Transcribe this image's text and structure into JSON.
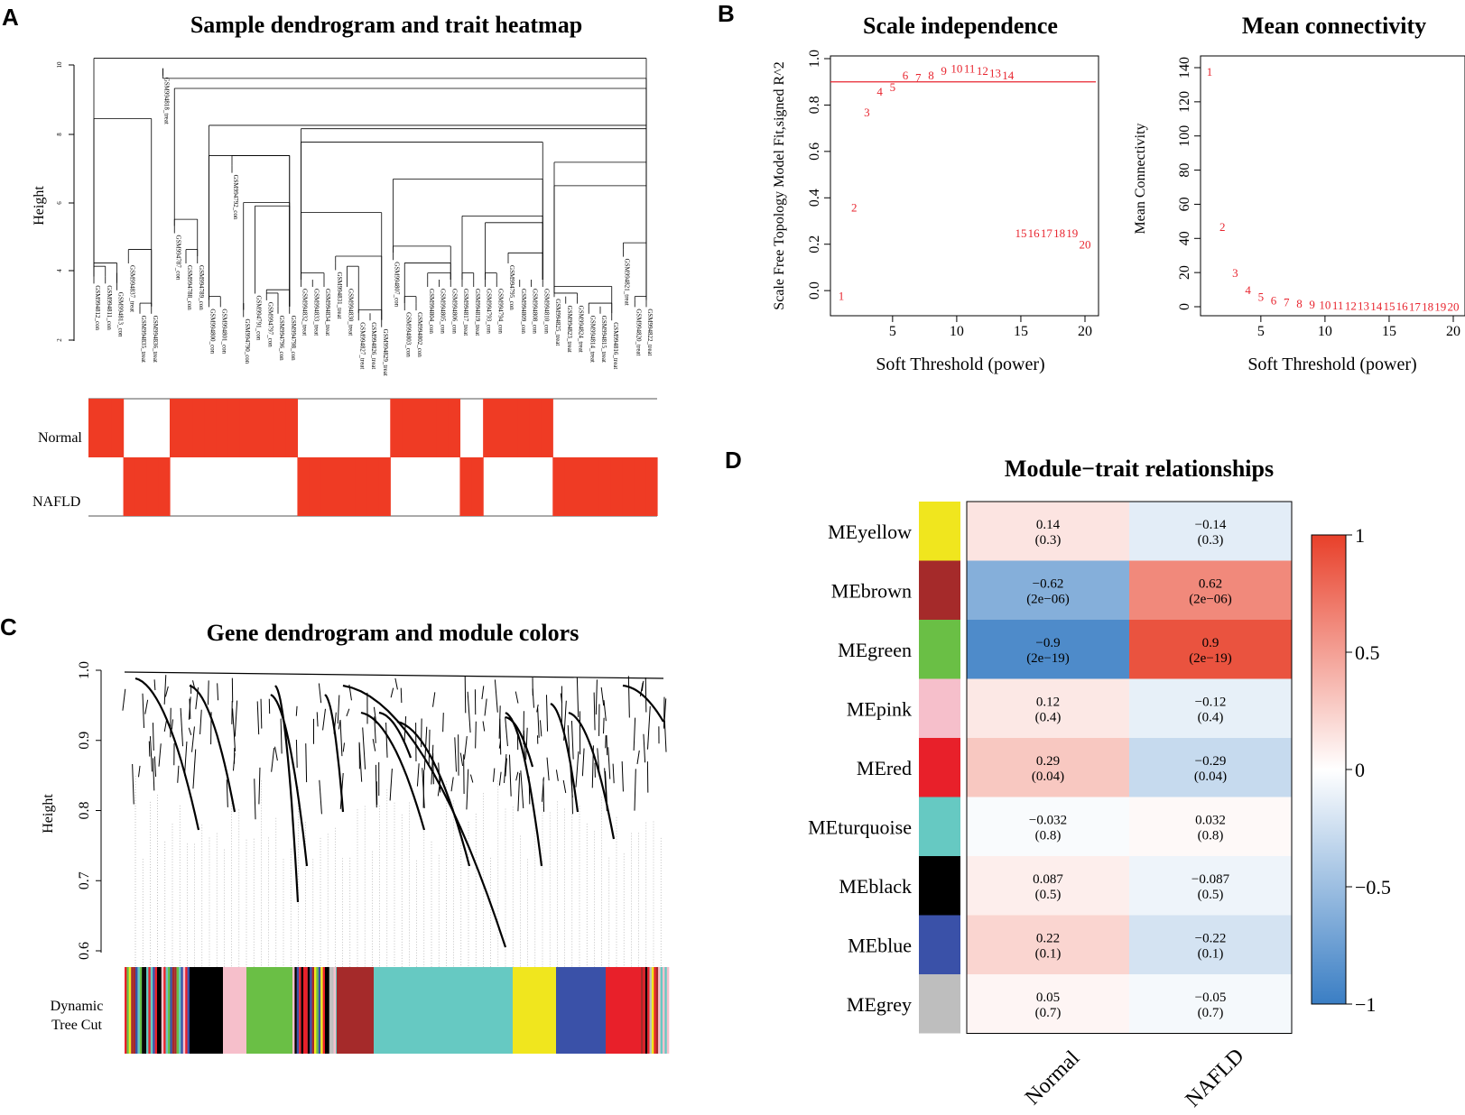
{
  "panels": {
    "a": "A",
    "b": "B",
    "c": "C",
    "d": "D"
  },
  "panel_a": {
    "title": "Sample dendrogram and trait heatmap",
    "ylabel": "Height",
    "yticks": [
      "2",
      "4",
      "6",
      "8",
      "10"
    ],
    "samples": [
      "GSM994812_con",
      "GSM994811_con",
      "GSM994813_con",
      "GSM994837_treat",
      "GSM994835_treat",
      "GSM994836_treat",
      "GSM994818_treat",
      "GSM994787_con",
      "GSM994788_con",
      "GSM994789_con",
      "GSM994800_con",
      "GSM994801_con",
      "GSM994792_con",
      "GSM994790_con",
      "GSM994791_con",
      "GSM994797_con",
      "GSM994796_con",
      "GSM994798_con",
      "GSM994832_treat",
      "GSM994833_treat",
      "GSM994834_treat",
      "GSM994831_treat",
      "GSM994830_treat",
      "GSM994827_treat",
      "GSM994826_treat",
      "GSM994829_treat",
      "GSM994807_con",
      "GSM994803_con",
      "GSM994802_con",
      "GSM994804_con",
      "GSM994805_con",
      "GSM994806_con",
      "GSM994817_treat",
      "GSM994819_treat",
      "GSM994793_con",
      "GSM994794_con",
      "GSM994795_con",
      "GSM994809_con",
      "GSM994808_con",
      "GSM994810_con",
      "GSM994825_treat",
      "GSM994823_treat",
      "GSM994824_treat",
      "GSM994814_treat",
      "GSM994815_treat",
      "GSM994816_treat",
      "GSM994821_treat",
      "GSM994820_treat",
      "GSM994822_treat"
    ],
    "traits": [
      "Normal",
      "NAFLD"
    ]
  },
  "chart_data": [
    {
      "type": "scatter",
      "title": "Scale independence",
      "xlabel": "Soft Threshold (power)",
      "ylabel": "Scale Free Topology Model Fit,signed R^2",
      "xlim": [
        1,
        20
      ],
      "ylim": [
        -0.05,
        1.0
      ],
      "xticks": [
        "5",
        "10",
        "15",
        "20"
      ],
      "yticks": [
        "0.0",
        "0.2",
        "0.4",
        "0.6",
        "0.8",
        "1.0"
      ],
      "threshold_line": 0.9,
      "x": [
        1,
        2,
        3,
        4,
        5,
        6,
        7,
        8,
        9,
        10,
        11,
        12,
        13,
        14,
        15,
        16,
        17,
        18,
        19,
        20
      ],
      "y": [
        -0.02,
        0.36,
        0.77,
        0.86,
        0.88,
        0.93,
        0.92,
        0.93,
        0.95,
        0.96,
        0.96,
        0.95,
        0.94,
        0.93,
        0.25,
        0.25,
        0.25,
        0.25,
        0.25,
        0.2
      ],
      "labels": [
        "1",
        "2",
        "3",
        "4",
        "5",
        "6",
        "7",
        "8",
        "9",
        "10",
        "11",
        "12",
        "13",
        "14",
        "15",
        "16",
        "17",
        "18",
        "19",
        "20"
      ]
    },
    {
      "type": "scatter",
      "title": "Mean connectivity",
      "xlabel": "Soft Threshold (power)",
      "ylabel": "Mean Connectivity",
      "xlim": [
        1,
        20
      ],
      "ylim": [
        0,
        140
      ],
      "xticks": [
        "5",
        "10",
        "15",
        "20"
      ],
      "yticks": [
        "0",
        "20",
        "40",
        "60",
        "80",
        "100",
        "120",
        "140"
      ],
      "x": [
        1,
        2,
        3,
        4,
        5,
        6,
        7,
        8,
        9,
        10,
        11,
        12,
        13,
        14,
        15,
        16,
        17,
        18,
        19,
        20
      ],
      "y": [
        138,
        47,
        20,
        10,
        6,
        4,
        3,
        2,
        1.6,
        1.2,
        1,
        0.8,
        0.7,
        0.6,
        0.5,
        0.4,
        0.35,
        0.3,
        0.25,
        0.2
      ],
      "labels": [
        "1",
        "2",
        "3",
        "4",
        "5",
        "6",
        "7",
        "8",
        "9",
        "10",
        "11",
        "12",
        "13",
        "14",
        "15",
        "16",
        "17",
        "18",
        "19",
        "20"
      ]
    },
    {
      "type": "heatmap",
      "title": "Module−trait relationships",
      "columns": [
        "Normal",
        "NAFLD"
      ],
      "rows": [
        {
          "module": "MEyellow",
          "color": "#f0e61e",
          "values": [
            0.14,
            -0.14
          ],
          "text": [
            "0.14",
            "−0.14"
          ],
          "p": [
            "(0.3)",
            "(0.3)"
          ]
        },
        {
          "module": "MEbrown",
          "color": "#a52a2a",
          "values": [
            -0.62,
            0.62
          ],
          "text": [
            "−0.62",
            "0.62"
          ],
          "p": [
            "(2e−06)",
            "(2e−06)"
          ]
        },
        {
          "module": "MEgreen",
          "color": "#6abf45",
          "values": [
            -0.9,
            0.9
          ],
          "text": [
            "−0.9",
            "0.9"
          ],
          "p": [
            "(2e−19)",
            "(2e−19)"
          ]
        },
        {
          "module": "MEpink",
          "color": "#f6bfcb",
          "values": [
            0.12,
            -0.12
          ],
          "text": [
            "0.12",
            "−0.12"
          ],
          "p": [
            "(0.4)",
            "(0.4)"
          ]
        },
        {
          "module": "MEred",
          "color": "#e8202a",
          "values": [
            0.29,
            -0.29
          ],
          "text": [
            "0.29",
            "−0.29"
          ],
          "p": [
            "(0.04)",
            "(0.04)"
          ]
        },
        {
          "module": "MEturquoise",
          "color": "#66c9c2",
          "values": [
            -0.032,
            0.032
          ],
          "text": [
            "−0.032",
            "0.032"
          ],
          "p": [
            "(0.8)",
            "(0.8)"
          ]
        },
        {
          "module": "MEblack",
          "color": "#000000",
          "values": [
            0.087,
            -0.087
          ],
          "text": [
            "0.087",
            "−0.087"
          ],
          "p": [
            "(0.5)",
            "(0.5)"
          ]
        },
        {
          "module": "MEblue",
          "color": "#3a51a8",
          "values": [
            0.22,
            -0.22
          ],
          "text": [
            "0.22",
            "−0.22"
          ],
          "p": [
            "(0.1)",
            "(0.1)"
          ]
        },
        {
          "module": "MEgrey",
          "color": "#bebebe",
          "values": [
            0.05,
            -0.05
          ],
          "text": [
            "0.05",
            "−0.05"
          ],
          "p": [
            "(0.7)",
            "(0.7)"
          ]
        }
      ],
      "legend": {
        "ticks": [
          "1",
          "0.5",
          "0",
          "−0.5",
          "−1"
        ],
        "values": [
          1,
          0.5,
          0,
          -0.5,
          -1
        ]
      }
    }
  ],
  "panel_c": {
    "title": "Gene dendrogram and module colors",
    "ylabel": "Height",
    "yticks": [
      "0.6",
      "0.7",
      "0.8",
      "0.9",
      "1.0"
    ],
    "track_label_1": "Dynamic",
    "track_label_2": "Tree Cut",
    "modules": [
      "mixed",
      "black",
      "pink",
      "green",
      "mixed",
      "brown",
      "turquoise",
      "yellow",
      "blue",
      "red",
      "mixed"
    ]
  },
  "colors": {
    "trait_fill": "#ef3b24",
    "point_red": "#e8252f",
    "heat_pos": "#e8402a",
    "heat_neg": "#3a7ec4"
  }
}
